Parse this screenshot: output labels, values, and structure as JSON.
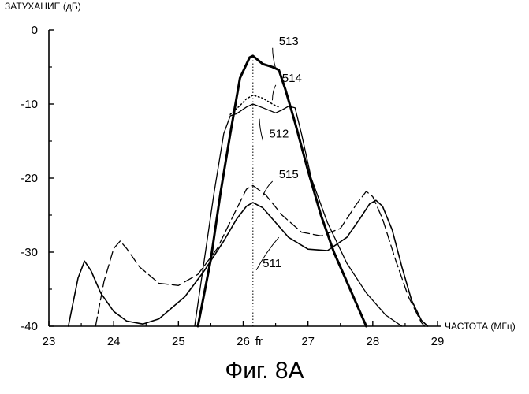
{
  "caption": "Фиг. 8A",
  "chart_data": {
    "type": "line",
    "ylabel": "ЗАТУХАНИЕ (дБ)",
    "xlabel": "ЧАСТОТА (МГц)",
    "xlim": [
      23,
      29
    ],
    "ylim": [
      -40,
      0
    ],
    "x_ticks": [
      "23",
      "24",
      "25",
      "26",
      "27",
      "28",
      "29"
    ],
    "y_ticks": [
      "0",
      "-10",
      "-20",
      "-30",
      "-40"
    ],
    "fr_label": "fr",
    "fr_x": 26.15,
    "grid": false,
    "series": [
      {
        "name": "511",
        "style": "solid",
        "width": 1.6,
        "points": [
          [
            23.3,
            -40
          ],
          [
            23.45,
            -33.5
          ],
          [
            23.55,
            -31.2
          ],
          [
            23.65,
            -32.5
          ],
          [
            23.8,
            -35.5
          ],
          [
            24,
            -38
          ],
          [
            24.2,
            -39.3
          ],
          [
            24.45,
            -39.7
          ],
          [
            24.7,
            -39
          ],
          [
            24.9,
            -37.5
          ],
          [
            25.1,
            -36
          ],
          [
            25.4,
            -32.5
          ],
          [
            25.7,
            -28.5
          ],
          [
            25.9,
            -25.5
          ],
          [
            26.05,
            -23.8
          ],
          [
            26.15,
            -23.3
          ],
          [
            26.3,
            -24
          ],
          [
            26.5,
            -26
          ],
          [
            26.7,
            -28
          ],
          [
            27,
            -29.6
          ],
          [
            27.3,
            -29.8
          ],
          [
            27.6,
            -28
          ],
          [
            27.8,
            -25.5
          ],
          [
            27.95,
            -23.5
          ],
          [
            28.05,
            -23
          ],
          [
            28.15,
            -23.8
          ],
          [
            28.3,
            -27
          ],
          [
            28.45,
            -32
          ],
          [
            28.6,
            -36.5
          ],
          [
            28.75,
            -39.2
          ],
          [
            28.85,
            -40
          ]
        ]
      },
      {
        "name": "512",
        "style": "solid",
        "width": 1.3,
        "points": [
          [
            25.25,
            -40
          ],
          [
            25.4,
            -31
          ],
          [
            25.55,
            -22
          ],
          [
            25.7,
            -14
          ],
          [
            25.8,
            -11.6
          ],
          [
            25.9,
            -11.3
          ],
          [
            26.05,
            -10.4
          ],
          [
            26.15,
            -10
          ],
          [
            26.3,
            -10.5
          ],
          [
            26.5,
            -11.2
          ],
          [
            26.6,
            -10.8
          ],
          [
            26.7,
            -10.3
          ],
          [
            26.8,
            -10.5
          ],
          [
            26.9,
            -14
          ],
          [
            27.05,
            -20
          ],
          [
            27.3,
            -26
          ],
          [
            27.6,
            -31.5
          ],
          [
            27.9,
            -35.5
          ],
          [
            28.2,
            -38.5
          ],
          [
            28.45,
            -40
          ]
        ]
      },
      {
        "name": "513",
        "style": "solid",
        "width": 3,
        "points": [
          [
            25.3,
            -40
          ],
          [
            25.5,
            -31
          ],
          [
            25.65,
            -22
          ],
          [
            25.8,
            -14
          ],
          [
            25.95,
            -6.5
          ],
          [
            26.1,
            -3.7
          ],
          [
            26.15,
            -3.5
          ],
          [
            26.3,
            -4.6
          ],
          [
            26.45,
            -5
          ],
          [
            26.55,
            -5.4
          ],
          [
            26.65,
            -8
          ],
          [
            26.8,
            -12.5
          ],
          [
            27,
            -19
          ],
          [
            27.2,
            -25
          ],
          [
            27.4,
            -30
          ],
          [
            27.6,
            -34
          ],
          [
            27.75,
            -37
          ],
          [
            27.9,
            -40
          ]
        ]
      },
      {
        "name": "514",
        "style": "dotted",
        "width": 1.5,
        "points": [
          [
            25.8,
            -11.4
          ],
          [
            25.95,
            -10.2
          ],
          [
            26.05,
            -9.3
          ],
          [
            26.15,
            -8.8
          ],
          [
            26.3,
            -9.2
          ],
          [
            26.45,
            -10
          ],
          [
            26.55,
            -10.4
          ]
        ]
      },
      {
        "name": "515",
        "style": "dashed",
        "width": 1.3,
        "points": [
          [
            23.72,
            -40
          ],
          [
            23.85,
            -34
          ],
          [
            24,
            -29.5
          ],
          [
            24.1,
            -28.5
          ],
          [
            24.2,
            -29.5
          ],
          [
            24.4,
            -32
          ],
          [
            24.7,
            -34.2
          ],
          [
            25,
            -34.5
          ],
          [
            25.3,
            -33
          ],
          [
            25.6,
            -29.5
          ],
          [
            25.85,
            -25
          ],
          [
            26.05,
            -21.5
          ],
          [
            26.15,
            -21
          ],
          [
            26.35,
            -22.3
          ],
          [
            26.6,
            -25
          ],
          [
            26.9,
            -27.3
          ],
          [
            27.2,
            -27.8
          ],
          [
            27.5,
            -26.8
          ],
          [
            27.75,
            -23.5
          ],
          [
            27.9,
            -21.8
          ],
          [
            28,
            -22.5
          ],
          [
            28.15,
            -25.5
          ],
          [
            28.35,
            -31
          ],
          [
            28.55,
            -36
          ],
          [
            28.75,
            -39.5
          ],
          [
            28.8,
            -40
          ]
        ]
      }
    ],
    "annotations": [
      {
        "text": "513",
        "x": 26.55,
        "y": -2,
        "tx": 26.5,
        "ty": -5.2
      },
      {
        "text": "514",
        "x": 26.6,
        "y": -7,
        "tx": 26.45,
        "ty": -9.5
      },
      {
        "text": "512",
        "x": 26.4,
        "y": -14.5,
        "tx": 26.25,
        "ty": -12
      },
      {
        "text": "515",
        "x": 26.55,
        "y": -20,
        "tx": 26.3,
        "ty": -22.5
      },
      {
        "text": "511",
        "x": 26.3,
        "y": -32,
        "tx": 26.55,
        "ty": -28
      }
    ]
  }
}
